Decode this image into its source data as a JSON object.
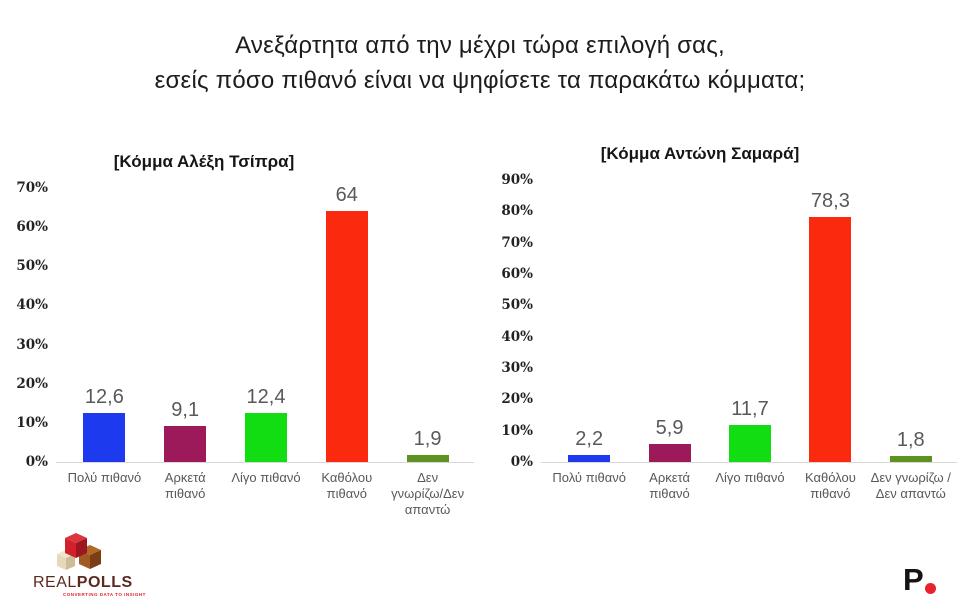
{
  "page": {
    "title": "Ανεξάρτητα από την μέχρι τώρα επιλογή σας,\nεσείς πόσο πιθανό είναι να ψηφίσετε τα παρακάτω κόμματα;"
  },
  "chart_data": [
    {
      "type": "bar",
      "title": "[Κόμμα Αλέξη Τσίπρα]",
      "categories": [
        "Πολύ πιθανό",
        "Αρκετά\nπιθανό",
        "Λίγο πιθανό",
        "Καθόλου\nπιθανό",
        "Δεν\nγνωρίζω/Δεν\nαπαντώ"
      ],
      "values": [
        12.6,
        9.1,
        12.4,
        64,
        1.9
      ],
      "value_labels": [
        "12,6",
        "9,1",
        "12,4",
        "64",
        "1,9"
      ],
      "bar_colors": [
        "#1e3aee",
        "#9c1a5a",
        "#12dd12",
        "#fb2a0e",
        "#5e921e"
      ],
      "ylim": [
        0,
        70
      ],
      "yticks": [
        "0%",
        "10%",
        "20%",
        "30%",
        "40%",
        "50%",
        "60%",
        "70%"
      ],
      "xlabel": "",
      "ylabel": "",
      "grid": false,
      "legend": false
    },
    {
      "type": "bar",
      "title": "[Κόμμα Αντώνη Σαμαρά]",
      "categories": [
        "Πολύ πιθανό",
        "Αρκετά\nπιθανό",
        "Λίγο πιθανό",
        "Καθόλου\nπιθανό",
        "Δεν γνωρίζω /\nΔεν απαντώ"
      ],
      "values": [
        2.2,
        5.9,
        11.7,
        78.3,
        1.8
      ],
      "value_labels": [
        "2,2",
        "5,9",
        "11,7",
        "78,3",
        "1,8"
      ],
      "bar_colors": [
        "#1e3aee",
        "#9c1a5a",
        "#12dd12",
        "#fb2a0e",
        "#5e921e"
      ],
      "ylim": [
        0,
        90
      ],
      "yticks": [
        "0%",
        "10%",
        "20%",
        "30%",
        "40%",
        "50%",
        "60%",
        "70%",
        "80%",
        "90%"
      ],
      "xlabel": "",
      "ylabel": "",
      "grid": false,
      "legend": false
    }
  ],
  "footer": {
    "realpolls_logo": {
      "text_real": "REAL",
      "text_polls": "POLLS",
      "tagline": "CONVERTING DATA TO INSIGHT"
    },
    "protagon_logo": {
      "letter": "P"
    }
  },
  "colors": {
    "background": "#ffffff",
    "axis_line": "#d8d8d8",
    "label_gray": "#595959",
    "tick_color": "#222222",
    "blue": "#1e3aee",
    "maroon": "#9c1a5a",
    "green": "#12dd12",
    "red": "#fb2a0e",
    "olive": "#5e921e",
    "protagon_dot": "#e8212e"
  }
}
